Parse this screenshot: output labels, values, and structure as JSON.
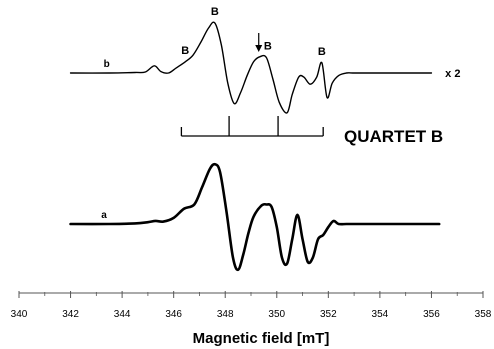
{
  "chart_data": {
    "type": "line",
    "title": "",
    "xlabel": "Magnetic field [mT]",
    "ylabel": "",
    "xlim": [
      340,
      358
    ],
    "x_ticks": [
      340,
      342,
      344,
      346,
      348,
      350,
      352,
      354,
      356,
      358
    ],
    "x_tick_labels": [
      "340",
      "342",
      "344",
      "346",
      "348",
      "350",
      "352",
      "354",
      "356",
      "358"
    ],
    "y_ticks_shown": false,
    "grid": false,
    "series": [
      {
        "name": "b",
        "scale_label": "x 2",
        "x": [
          342.0,
          343.5,
          344.5,
          344.9,
          345.25,
          345.5,
          345.8,
          346.1,
          346.45,
          346.75,
          347.05,
          347.35,
          347.6,
          347.85,
          348.1,
          348.35,
          348.6,
          348.85,
          349.1,
          349.35,
          349.6,
          349.85,
          350.1,
          350.4,
          350.6,
          350.85,
          351.05,
          351.3,
          351.55,
          351.75,
          351.95,
          352.15,
          352.4,
          352.7,
          353.0,
          353.5,
          354.5,
          356.0
        ],
        "y": [
          0.0,
          0.0,
          0.01,
          0.02,
          0.14,
          0.03,
          0.0,
          0.1,
          0.22,
          0.35,
          0.6,
          0.88,
          0.98,
          0.55,
          -0.2,
          -0.6,
          -0.38,
          -0.05,
          0.22,
          0.32,
          0.3,
          -0.12,
          -0.58,
          -0.78,
          -0.42,
          -0.08,
          -0.08,
          -0.22,
          -0.08,
          0.2,
          -0.48,
          -0.2,
          -0.05,
          0.0,
          0.0,
          0.0,
          0.0,
          0.0
        ]
      },
      {
        "name": "a",
        "scale_label": "",
        "x": [
          342.0,
          343.5,
          344.5,
          345.0,
          345.3,
          345.6,
          346.0,
          346.4,
          346.8,
          347.1,
          347.4,
          347.6,
          347.8,
          348.05,
          348.3,
          348.5,
          348.7,
          348.9,
          349.1,
          349.4,
          349.6,
          349.8,
          350.0,
          350.2,
          350.4,
          350.6,
          350.8,
          351.0,
          351.2,
          351.4,
          351.6,
          351.8,
          352.0,
          352.2,
          352.4,
          352.7,
          353.0,
          353.5,
          354.5,
          356.3
        ],
        "y": [
          0.0,
          0.0,
          0.01,
          0.03,
          0.05,
          0.04,
          0.1,
          0.25,
          0.32,
          0.6,
          0.9,
          0.98,
          0.85,
          0.2,
          -0.55,
          -0.75,
          -0.5,
          -0.15,
          0.12,
          0.3,
          0.32,
          0.28,
          -0.05,
          -0.55,
          -0.65,
          -0.25,
          0.15,
          -0.25,
          -0.62,
          -0.55,
          -0.25,
          -0.18,
          -0.05,
          0.05,
          0.0,
          0.0,
          0.0,
          0.0,
          0.0,
          0.0
        ]
      }
    ],
    "annotations": {
      "peak_letter": "B",
      "peak_labels": [
        {
          "text": "B",
          "x": 346.45
        },
        {
          "text": "B",
          "x": 347.6
        },
        {
          "text": "B",
          "x": 349.5
        },
        {
          "text": "B",
          "x": 351.75
        }
      ],
      "arrow_x": 349.3,
      "quartet": {
        "title": "QUARTET  B",
        "left": 346.3,
        "right": 351.8,
        "lines": [
          346.3,
          348.15,
          350.05,
          351.8
        ]
      }
    }
  }
}
